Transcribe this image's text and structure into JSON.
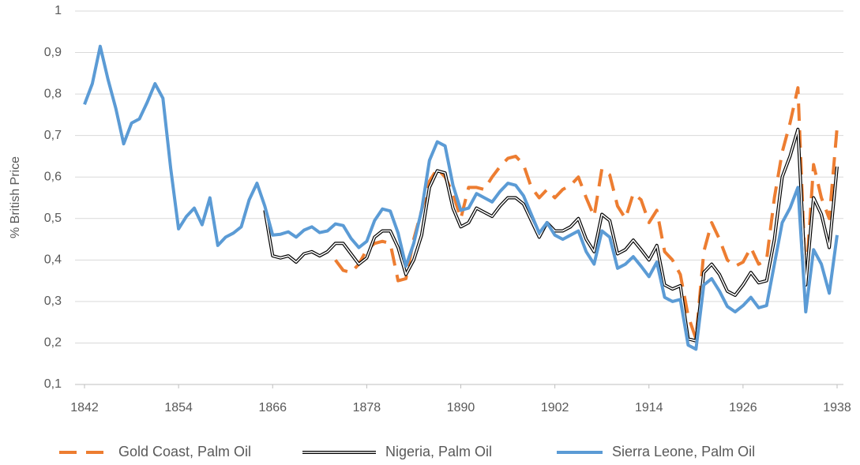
{
  "chart_data": {
    "type": "line",
    "y_label": "% British Price",
    "x": [
      1842,
      1843,
      1844,
      1845,
      1846,
      1847,
      1848,
      1849,
      1850,
      1851,
      1852,
      1853,
      1854,
      1855,
      1856,
      1857,
      1858,
      1859,
      1860,
      1861,
      1862,
      1863,
      1864,
      1865,
      1866,
      1867,
      1868,
      1869,
      1870,
      1871,
      1872,
      1873,
      1874,
      1875,
      1876,
      1877,
      1878,
      1879,
      1880,
      1881,
      1882,
      1883,
      1884,
      1885,
      1886,
      1887,
      1888,
      1889,
      1890,
      1891,
      1892,
      1893,
      1894,
      1895,
      1896,
      1897,
      1898,
      1899,
      1900,
      1901,
      1902,
      1903,
      1904,
      1905,
      1906,
      1907,
      1908,
      1909,
      1910,
      1911,
      1912,
      1913,
      1914,
      1915,
      1916,
      1917,
      1918,
      1919,
      1920,
      1921,
      1922,
      1923,
      1924,
      1925,
      1926,
      1927,
      1928,
      1929,
      1930,
      1931,
      1932,
      1933,
      1934,
      1935,
      1936,
      1937,
      1938
    ],
    "series": [
      {
        "name": "Gold Coast, Palm Oil",
        "color": "#ED7D31",
        "line_style": "dashed",
        "values": [
          null,
          null,
          null,
          null,
          null,
          null,
          null,
          null,
          null,
          null,
          null,
          null,
          null,
          null,
          null,
          null,
          null,
          null,
          null,
          null,
          null,
          null,
          null,
          null,
          null,
          null,
          null,
          null,
          null,
          null,
          null,
          null,
          0.4,
          0.375,
          0.37,
          0.39,
          0.425,
          0.44,
          0.445,
          0.44,
          0.35,
          0.355,
          0.45,
          0.52,
          0.59,
          0.62,
          0.6,
          0.56,
          0.5,
          0.575,
          0.575,
          0.57,
          0.6,
          0.625,
          0.645,
          0.65,
          0.63,
          0.575,
          0.55,
          0.57,
          0.55,
          0.57,
          0.58,
          0.6,
          0.55,
          0.505,
          0.62,
          0.605,
          0.53,
          0.5,
          0.56,
          0.545,
          0.49,
          0.52,
          0.42,
          0.4,
          0.365,
          0.265,
          0.21,
          0.42,
          0.49,
          0.45,
          0.4,
          0.385,
          0.395,
          0.43,
          0.39,
          0.4,
          0.55,
          0.66,
          0.73,
          0.815,
          0.34,
          0.63,
          0.55,
          0.5,
          0.72
        ]
      },
      {
        "name": "Nigeria, Palm Oil",
        "color": "#000000",
        "line_style": "double",
        "values": [
          null,
          null,
          null,
          null,
          null,
          null,
          null,
          null,
          null,
          null,
          null,
          null,
          null,
          null,
          null,
          null,
          null,
          null,
          null,
          null,
          null,
          null,
          null,
          0.52,
          0.41,
          0.405,
          0.41,
          0.395,
          0.415,
          0.42,
          0.41,
          0.42,
          0.44,
          0.44,
          0.415,
          0.39,
          0.405,
          0.455,
          0.47,
          0.47,
          0.43,
          0.365,
          0.4,
          0.46,
          0.575,
          0.615,
          0.61,
          0.525,
          0.48,
          0.49,
          0.525,
          0.515,
          0.505,
          0.53,
          0.55,
          0.55,
          0.535,
          0.495,
          0.455,
          0.49,
          0.47,
          0.47,
          0.48,
          0.5,
          0.45,
          0.42,
          0.51,
          0.495,
          0.415,
          0.425,
          0.448,
          0.425,
          0.4,
          0.435,
          0.34,
          0.33,
          0.338,
          0.21,
          0.205,
          0.37,
          0.39,
          0.365,
          0.325,
          0.315,
          0.34,
          0.37,
          0.345,
          0.35,
          0.45,
          0.6,
          0.65,
          0.715,
          0.34,
          0.55,
          0.51,
          0.43,
          0.625
        ]
      },
      {
        "name": "Sierra Leone, Palm Oil",
        "color": "#5B9BD5",
        "line_style": "solid",
        "values": [
          0.775,
          0.825,
          0.915,
          0.835,
          0.765,
          0.68,
          0.73,
          0.74,
          0.78,
          0.825,
          0.79,
          0.62,
          0.475,
          0.505,
          0.525,
          0.485,
          0.55,
          0.435,
          0.455,
          0.465,
          0.48,
          0.545,
          0.585,
          0.53,
          0.46,
          0.462,
          0.468,
          0.455,
          0.472,
          0.48,
          0.466,
          0.47,
          0.487,
          0.483,
          0.452,
          0.43,
          0.445,
          0.495,
          0.523,
          0.518,
          0.465,
          0.385,
          0.44,
          0.52,
          0.64,
          0.685,
          0.675,
          0.58,
          0.52,
          0.525,
          0.56,
          0.55,
          0.54,
          0.565,
          0.585,
          0.58,
          0.555,
          0.51,
          0.465,
          0.49,
          0.46,
          0.45,
          0.46,
          0.47,
          0.42,
          0.39,
          0.47,
          0.455,
          0.38,
          0.39,
          0.408,
          0.385,
          0.36,
          0.395,
          0.31,
          0.3,
          0.305,
          0.195,
          0.185,
          0.34,
          0.355,
          0.325,
          0.288,
          0.275,
          0.29,
          0.31,
          0.285,
          0.29,
          0.39,
          0.49,
          0.525,
          0.575,
          0.275,
          0.425,
          0.39,
          0.32,
          0.46
        ]
      }
    ],
    "xlim": [
      1842,
      1938
    ],
    "xticks": [
      1842,
      1854,
      1866,
      1878,
      1890,
      1902,
      1914,
      1926,
      1938
    ],
    "ylim": [
      0.1,
      1
    ],
    "yticks": [
      {
        "value": 0.1,
        "label": "0,1"
      },
      {
        "value": 0.2,
        "label": "0,2"
      },
      {
        "value": 0.3,
        "label": "0,3"
      },
      {
        "value": 0.4,
        "label": "0,4"
      },
      {
        "value": 0.5,
        "label": "0,5"
      },
      {
        "value": 0.6,
        "label": "0,6"
      },
      {
        "value": 0.7,
        "label": "0,7"
      },
      {
        "value": 0.8,
        "label": "0,8"
      },
      {
        "value": 0.9,
        "label": "0,9"
      },
      1
    ],
    "grid": true,
    "legend": "bottom"
  }
}
